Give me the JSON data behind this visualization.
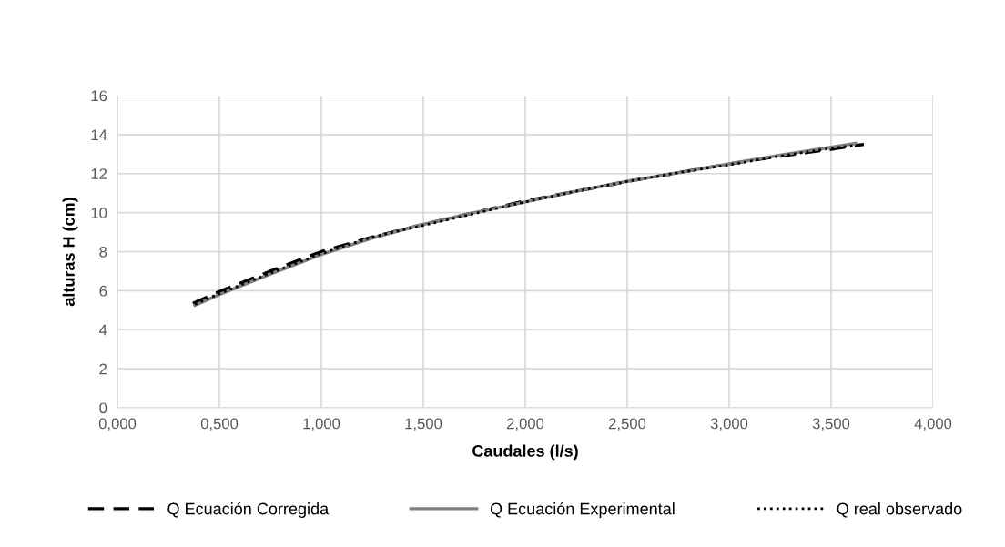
{
  "chart_data": {
    "type": "line",
    "xlabel": "Caudales (l/s)",
    "ylabel": "alturas H (cm)",
    "xlim": [
      0,
      4
    ],
    "ylim": [
      0,
      16
    ],
    "xticks": [
      {
        "value": 0,
        "label": "0,000"
      },
      {
        "value": 0.5,
        "label": "0,500"
      },
      {
        "value": 1,
        "label": "1,000"
      },
      {
        "value": 1.5,
        "label": "1,500"
      },
      {
        "value": 2,
        "label": "2,000"
      },
      {
        "value": 2.5,
        "label": "2,500"
      },
      {
        "value": 3,
        "label": "3,000"
      },
      {
        "value": 3.5,
        "label": "3,500"
      },
      {
        "value": 4,
        "label": "4,000"
      }
    ],
    "yticks": [
      0,
      2,
      4,
      6,
      8,
      10,
      12,
      14,
      16
    ],
    "grid": true,
    "legend": "bottom",
    "series": [
      {
        "name": "Q Ecuación Corregida",
        "color": "#000000",
        "line_style": "dashed",
        "x": [
          0.37,
          0.5,
          0.75,
          1.0,
          1.25,
          1.5,
          1.75,
          2.0,
          2.25,
          2.5,
          2.75,
          3.0,
          3.25,
          3.5,
          3.66
        ],
        "values": [
          5.35,
          5.95,
          7.0,
          8.0,
          8.75,
          9.4,
          10.0,
          10.6,
          11.1,
          11.6,
          12.05,
          12.5,
          12.9,
          13.25,
          13.5
        ]
      },
      {
        "name": "Q Ecuación Experimental",
        "color": "#808080",
        "line_style": "solid",
        "x": [
          0.38,
          0.5,
          0.75,
          1.0,
          1.25,
          1.5,
          1.75,
          2.0,
          2.25,
          2.5,
          2.75,
          3.0,
          3.25,
          3.5,
          3.62
        ],
        "values": [
          5.25,
          5.8,
          6.85,
          7.85,
          8.7,
          9.4,
          10.0,
          10.55,
          11.1,
          11.6,
          12.05,
          12.5,
          12.95,
          13.35,
          13.55
        ]
      },
      {
        "name": "Q real observado",
        "color": "#000000",
        "line_style": "dotted",
        "x": [
          0.38,
          0.5,
          0.75,
          1.0,
          1.25,
          1.5,
          1.75,
          2.0,
          2.25,
          2.5,
          2.75,
          3.0,
          3.25,
          3.5,
          3.66
        ],
        "values": [
          5.3,
          5.85,
          6.9,
          7.9,
          8.75,
          9.35,
          9.95,
          10.55,
          11.1,
          11.6,
          12.05,
          12.45,
          12.9,
          13.3,
          13.5
        ]
      }
    ]
  }
}
